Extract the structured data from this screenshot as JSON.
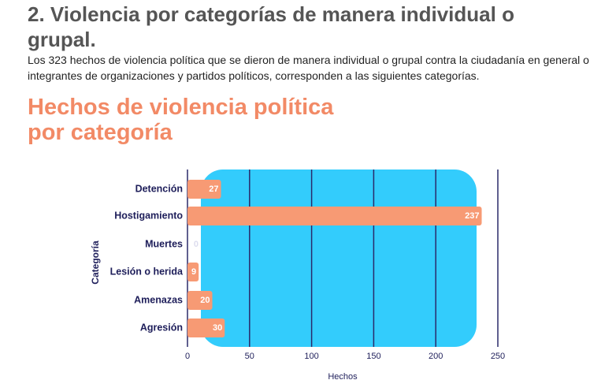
{
  "header": {
    "title": "2. Violencia por categorías de manera individual o grupal.",
    "paragraph": "Los 323 hechos de violencia política que se dieron de manera individual o grupal contra la ciudadanía en general o integrantes de organizaciones y partidos políticos, corresponden a las siguientes categorías."
  },
  "chart_data": {
    "type": "bar",
    "orientation": "horizontal",
    "title": "Hechos de violencia política por categoría",
    "categories": [
      "Detención",
      "Hostigamiento",
      "Muertes",
      "Lesión o herida",
      "Amenazas",
      "Agresión"
    ],
    "values": [
      27,
      237,
      0,
      9,
      20,
      30
    ],
    "color": "#f79a74",
    "xlim": [
      0,
      250
    ],
    "xticks": [
      0,
      50,
      100,
      150,
      200,
      250
    ],
    "x_label": "Hechos",
    "y_label": "Categoría",
    "grid": true
  }
}
